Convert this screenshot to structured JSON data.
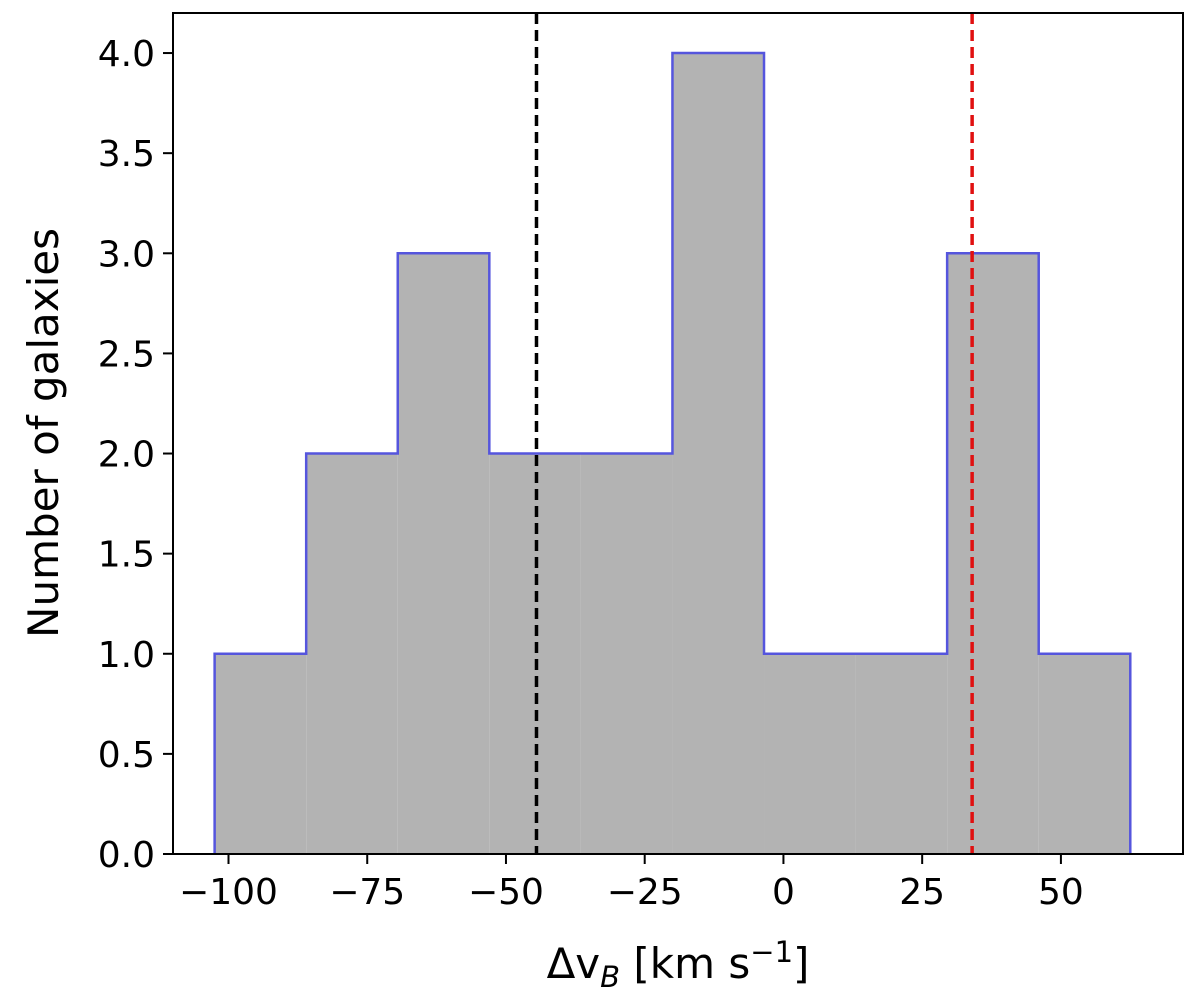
{
  "chart_data": {
    "type": "bar",
    "subtype": "histogram",
    "bin_edges": [
      -102.5,
      -86.0,
      -69.5,
      -53.0,
      -36.5,
      -20.0,
      -3.5,
      13.0,
      29.5,
      46.0,
      62.5
    ],
    "values": [
      1,
      2,
      3,
      2,
      2,
      4,
      1,
      1,
      3,
      1
    ],
    "xlim": [
      -110,
      72
    ],
    "ylim": [
      0,
      4.2
    ],
    "xticks": [
      -100,
      -75,
      -50,
      -25,
      0,
      25,
      50
    ],
    "xtick_labels": [
      "−100",
      "−75",
      "−50",
      "−25",
      "0",
      "25",
      "50"
    ],
    "yticks": [
      0.0,
      0.5,
      1.0,
      1.5,
      2.0,
      2.5,
      3.0,
      3.5,
      4.0
    ],
    "ytick_labels": [
      "0.0",
      "0.5",
      "1.0",
      "1.5",
      "2.0",
      "2.5",
      "3.0",
      "3.5",
      "4.0"
    ],
    "xlabel_main": "Δv",
    "xlabel_sub": "B",
    "xlabel_unit": " [km s",
    "xlabel_sup": "−1",
    "xlabel_close": "]",
    "ylabel": "Number of galaxies",
    "vlines": [
      {
        "x": -44.5,
        "color": "#000000",
        "style": "dashed"
      },
      {
        "x": 34.0,
        "color": "#e01010",
        "style": "dashed"
      }
    ],
    "fill_color": "#b3b3b3",
    "edge_color": "#5555dd",
    "grid": false
  }
}
